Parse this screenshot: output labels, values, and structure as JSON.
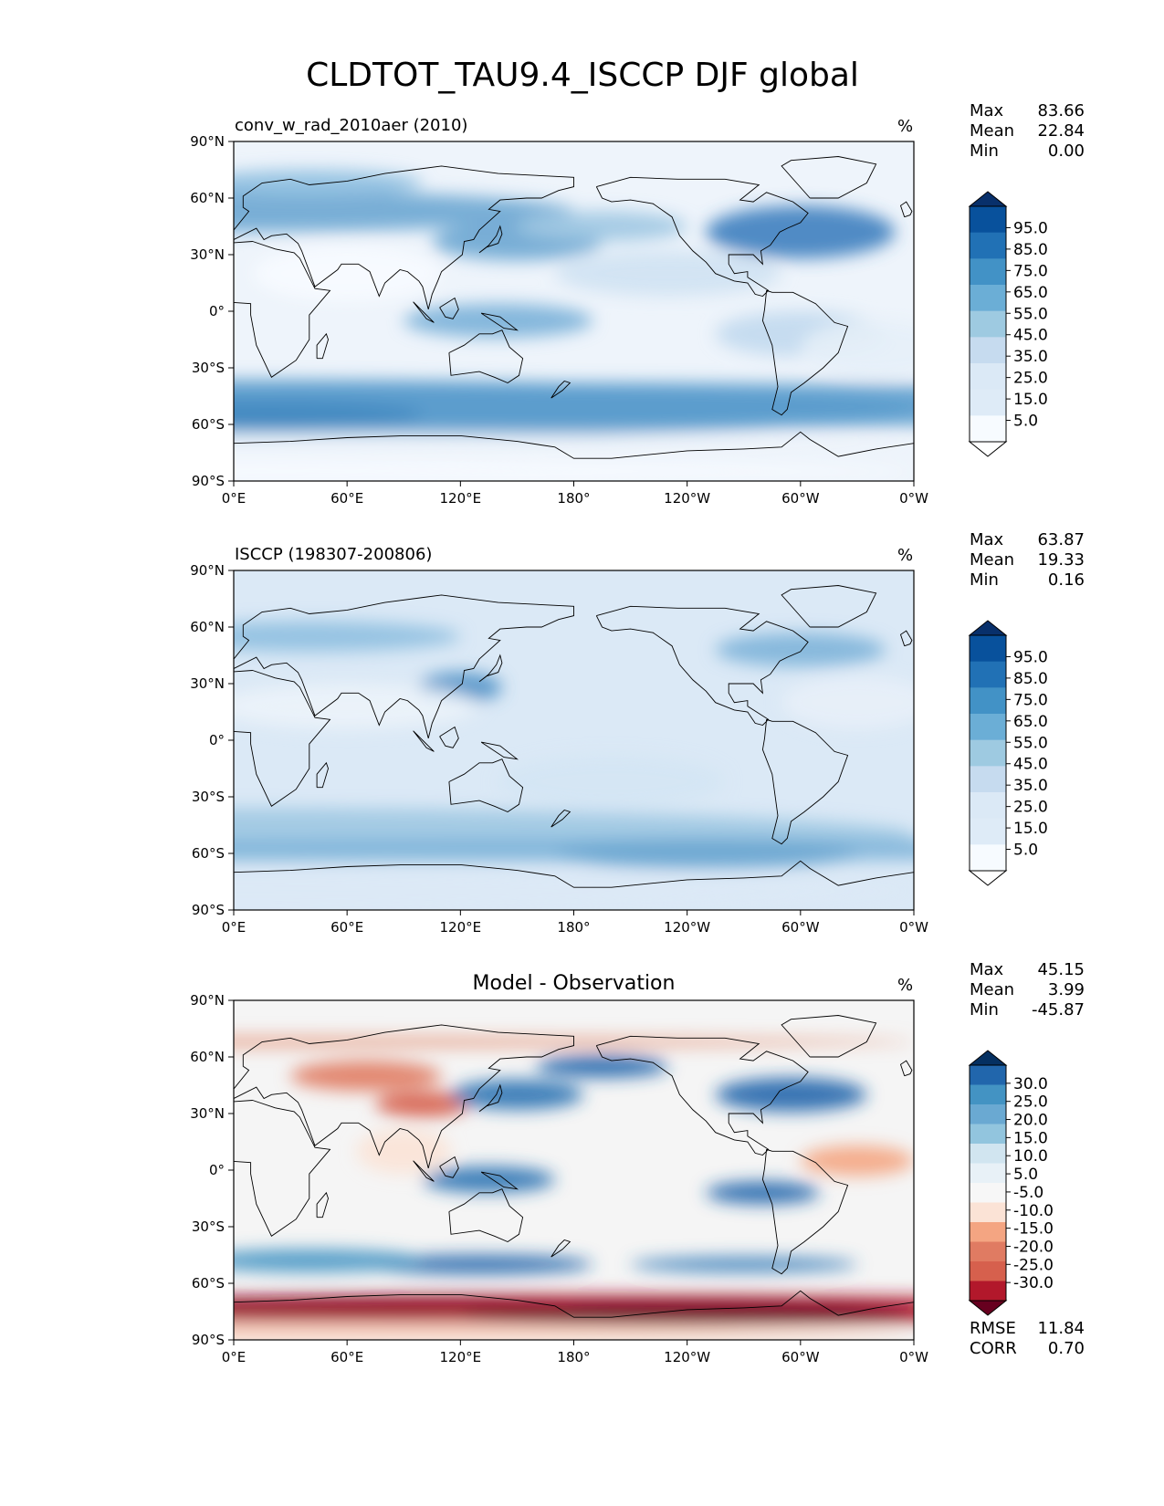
{
  "figure": {
    "title": "CLDTOT_TAU9.4_ISCCP DJF global"
  },
  "axes_ticks": {
    "x": [
      "0°E",
      "60°E",
      "120°E",
      "180°",
      "120°W",
      "60°W",
      "0°W"
    ],
    "y": [
      "90°N",
      "60°N",
      "30°N",
      "0°",
      "30°S",
      "60°S",
      "90°S"
    ]
  },
  "chart_data": [
    {
      "type": "heatmap",
      "title": "conv_w_rad_2010aer (2010)",
      "units": "%",
      "xlim": [
        0,
        360
      ],
      "ylim": [
        -90,
        90
      ],
      "stats": [
        {
          "label": "Max",
          "value": "83.66"
        },
        {
          "label": "Mean",
          "value": "22.84"
        },
        {
          "label": "Min",
          "value": "0.00"
        }
      ],
      "colorbar": {
        "levels": [
          "95.0",
          "85.0",
          "75.0",
          "65.0",
          "55.0",
          "45.0",
          "35.0",
          "25.0",
          "15.0",
          "5.0"
        ],
        "colors": [
          "#08306b",
          "#08519c",
          "#2171b5",
          "#4292c6",
          "#6baed6",
          "#9ecae1",
          "#c6dbef",
          "#dbe9f6",
          "#deebf7",
          "#f7fbff",
          "#ffffff"
        ]
      }
    },
    {
      "type": "heatmap",
      "title": "ISCCP (198307-200806)",
      "units": "%",
      "xlim": [
        0,
        360
      ],
      "ylim": [
        -90,
        90
      ],
      "stats": [
        {
          "label": "Max",
          "value": "63.87"
        },
        {
          "label": "Mean",
          "value": "19.33"
        },
        {
          "label": "Min",
          "value": "0.16"
        }
      ],
      "colorbar": {
        "levels": [
          "95.0",
          "85.0",
          "75.0",
          "65.0",
          "55.0",
          "45.0",
          "35.0",
          "25.0",
          "15.0",
          "5.0"
        ],
        "colors": [
          "#08306b",
          "#08519c",
          "#2171b5",
          "#4292c6",
          "#6baed6",
          "#9ecae1",
          "#c6dbef",
          "#dbe9f6",
          "#deebf7",
          "#f7fbff",
          "#ffffff"
        ]
      }
    },
    {
      "type": "heatmap",
      "title": "Model - Observation",
      "units": "%",
      "xlim": [
        0,
        360
      ],
      "ylim": [
        -90,
        90
      ],
      "stats": [
        {
          "label": "Max",
          "value": "45.15"
        },
        {
          "label": "Mean",
          "value": "3.99"
        },
        {
          "label": "Min",
          "value": "-45.87"
        }
      ],
      "extra_stats": [
        {
          "label": "RMSE",
          "value": "11.84"
        },
        {
          "label": "CORR",
          "value": "0.70"
        }
      ],
      "colorbar": {
        "levels": [
          "30.0",
          "25.0",
          "20.0",
          "15.0",
          "10.0",
          "5.0",
          "-5.0",
          "-10.0",
          "-15.0",
          "-20.0",
          "-25.0",
          "-30.0"
        ],
        "colors": [
          "#053061",
          "#2166ac",
          "#4393c3",
          "#6aa9d2",
          "#92c5de",
          "#d1e5f0",
          "#e8f1f7",
          "#f7f7f7",
          "#fbe3d6",
          "#f4a582",
          "#e07b62",
          "#d6604d",
          "#b2182b",
          "#67001f"
        ]
      }
    }
  ]
}
